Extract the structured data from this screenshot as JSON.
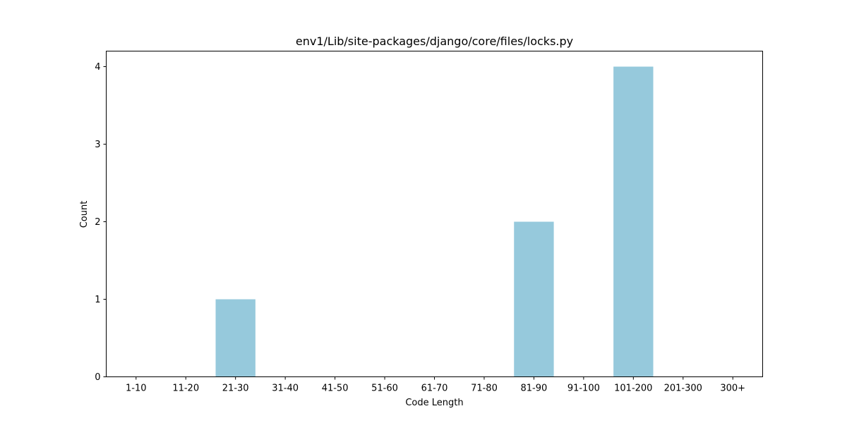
{
  "chart_data": {
    "type": "bar",
    "title": "env1/Lib/site-packages/django/core/files/locks.py",
    "xlabel": "Code Length",
    "ylabel": "Count",
    "categories": [
      "1-10",
      "11-20",
      "21-30",
      "31-40",
      "41-50",
      "51-60",
      "61-70",
      "71-80",
      "81-90",
      "91-100",
      "101-200",
      "201-300",
      "300+"
    ],
    "values": [
      0,
      0,
      1,
      0,
      0,
      0,
      0,
      0,
      2,
      0,
      4,
      0,
      0
    ],
    "ylim": [
      0,
      4.2
    ],
    "yticks": [
      0,
      1,
      2,
      3,
      4
    ],
    "bar_color": "#96c9dc",
    "grid": false,
    "legend": "none"
  }
}
